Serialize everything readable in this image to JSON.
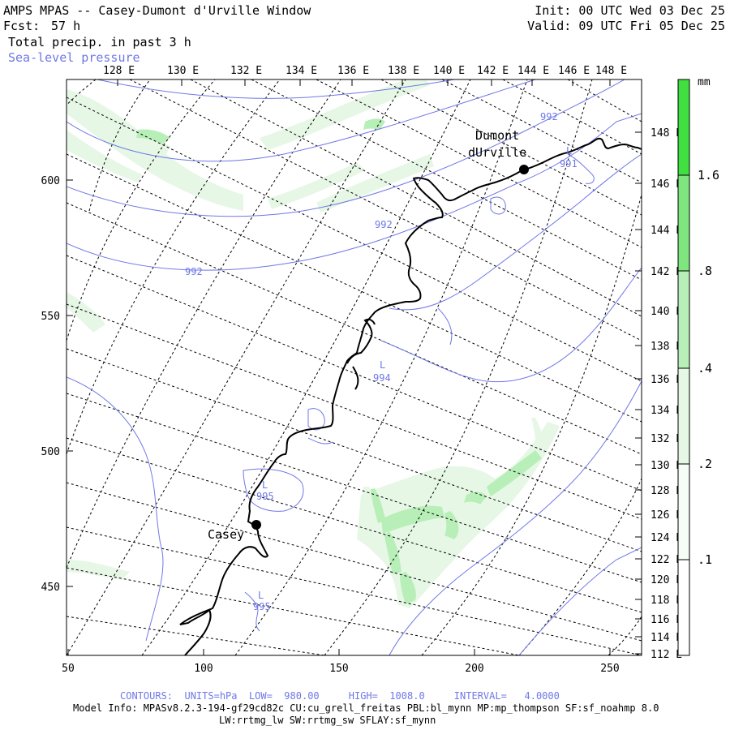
{
  "header": {
    "title": "AMPS MPAS -- Casey-Dumont d'Urville Window",
    "fcst_label": "Fcst:",
    "fcst_value": "57 h",
    "field": "Total precip. in past 3 h",
    "overlay": "Sea-level pressure",
    "init": "Init: 00 UTC Wed 03 Dec 25",
    "valid": "Valid: 09 UTC Fri 05 Dec 25"
  },
  "axes": {
    "top_lon_labels": [
      "128 E",
      "130 E",
      "132 E",
      "134 E",
      "136 E",
      "138 E",
      "140 E",
      "142 E",
      "144 E",
      "146 E",
      "148 E"
    ],
    "right_lat_labels": [
      "148 E",
      "146 E",
      "144 E",
      "142 E",
      "140 E",
      "138 E",
      "136 E",
      "134 E",
      "132 E",
      "130 E",
      "128 E",
      "126 E",
      "124 E",
      "122 E",
      "120 E",
      "118 E",
      "116 E",
      "114 E",
      "112 E"
    ],
    "left_y_labels": [
      "600",
      "550",
      "500",
      "450"
    ],
    "bottom_x_labels": [
      "50",
      "100",
      "150",
      "200",
      "250"
    ],
    "x_range": [
      50,
      262
    ],
    "y_range": [
      425,
      640
    ]
  },
  "map_labels": {
    "stations": [
      {
        "name": "Casey",
        "x": 119,
        "y": 472
      },
      {
        "name_line1": "Dumont",
        "name_line2": "dUrville",
        "x": 219,
        "y": 604
      }
    ],
    "contours": [
      {
        "label": "992",
        "x": 183,
        "y": 582
      },
      {
        "label": "992",
        "x": 97,
        "y": 565
      },
      {
        "label": "992",
        "x": 228,
        "y": 623
      },
      {
        "label": "994",
        "x": 165,
        "y": 527
      },
      {
        "label": "995",
        "x": 116,
        "y": 484
      },
      {
        "label": "995",
        "x": 117,
        "y": 446
      },
      {
        "label": "991",
        "x": 236,
        "y": 605
      }
    ],
    "lows": [
      {
        "symbol": "L",
        "x": 165,
        "y": 531
      },
      {
        "symbol": "L",
        "x": 116,
        "y": 488
      },
      {
        "symbol": "L",
        "x": 116,
        "y": 450
      },
      {
        "symbol": "L",
        "x": 237,
        "y": 610
      }
    ]
  },
  "colorbar": {
    "unit": "mm",
    "ticks": [
      ".1",
      ".2",
      ".4",
      ".8",
      "1.6"
    ],
    "colors": [
      "#ffffff",
      "#e6f7e6",
      "#b8efb8",
      "#7fe67f",
      "#3fe03f"
    ]
  },
  "footer": {
    "contours": "CONTOURS:  UNITS=hPa  LOW=  980.00     HIGH=  1008.0     INTERVAL=   4.0000",
    "model_info": "Model Info: MPASv8.2.3-194-gf29cd82c CU:cu_grell_freitas PBL:bl_mynn MP:mp_thompson SF:sf_noahmp 8.0",
    "model_info2": "LW:rrtmg_lw SW:rrtmg_sw SFLAY:sf_mynn"
  },
  "colors": {
    "contour": "#6f78e6",
    "precip_light": "#e6f7e6",
    "precip_mid": "#b8efb8",
    "precip_strong": "#7fe67f"
  }
}
